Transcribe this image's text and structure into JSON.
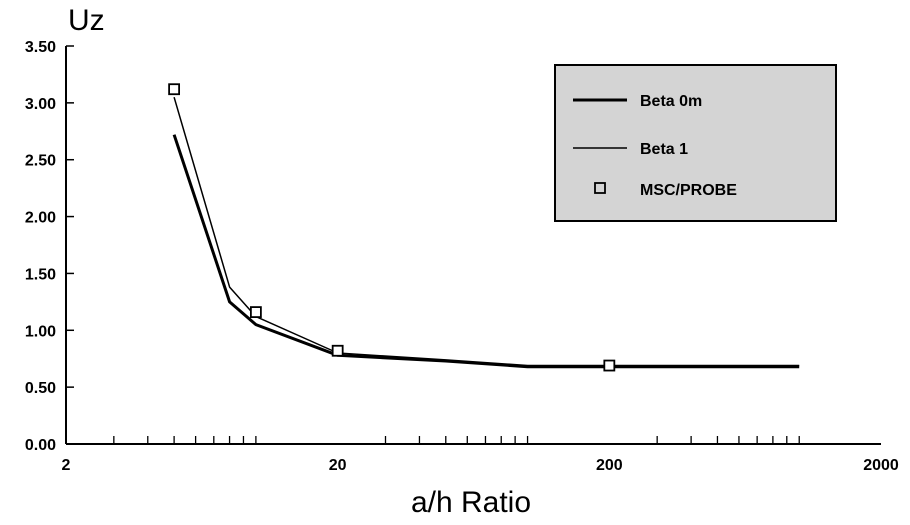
{
  "chart_data": {
    "type": "line",
    "title": "Uz",
    "xlabel": "a/h Ratio",
    "ylabel": "",
    "xscale": "log",
    "xlim": [
      2,
      2000
    ],
    "ylim": [
      0,
      3.5
    ],
    "xticks": [
      "2",
      "20",
      "200",
      "2000"
    ],
    "yticks": [
      "0.00",
      "0.50",
      "1.00",
      "1.50",
      "2.00",
      "2.50",
      "3.00",
      "3.50"
    ],
    "grid": false,
    "legend_position": "top-right",
    "series": [
      {
        "name": "Beta 0m",
        "style": "line-thick",
        "x": [
          5,
          8,
          10,
          20,
          50,
          100,
          1000
        ],
        "y": [
          2.72,
          1.25,
          1.05,
          0.78,
          0.73,
          0.68,
          0.68
        ]
      },
      {
        "name": "Beta 1",
        "style": "line-thin",
        "x": [
          5,
          8,
          10,
          20,
          50,
          100,
          1000
        ],
        "y": [
          3.05,
          1.38,
          1.12,
          0.8,
          0.74,
          0.69,
          0.69
        ]
      },
      {
        "name": "MSC/PROBE",
        "style": "square-marker",
        "x": [
          5,
          10,
          20,
          200
        ],
        "y": [
          3.12,
          1.16,
          0.82,
          0.69
        ]
      }
    ]
  },
  "colors": {
    "line": "#000000",
    "legend_background": "#d4d4d4",
    "background": "#ffffff"
  }
}
